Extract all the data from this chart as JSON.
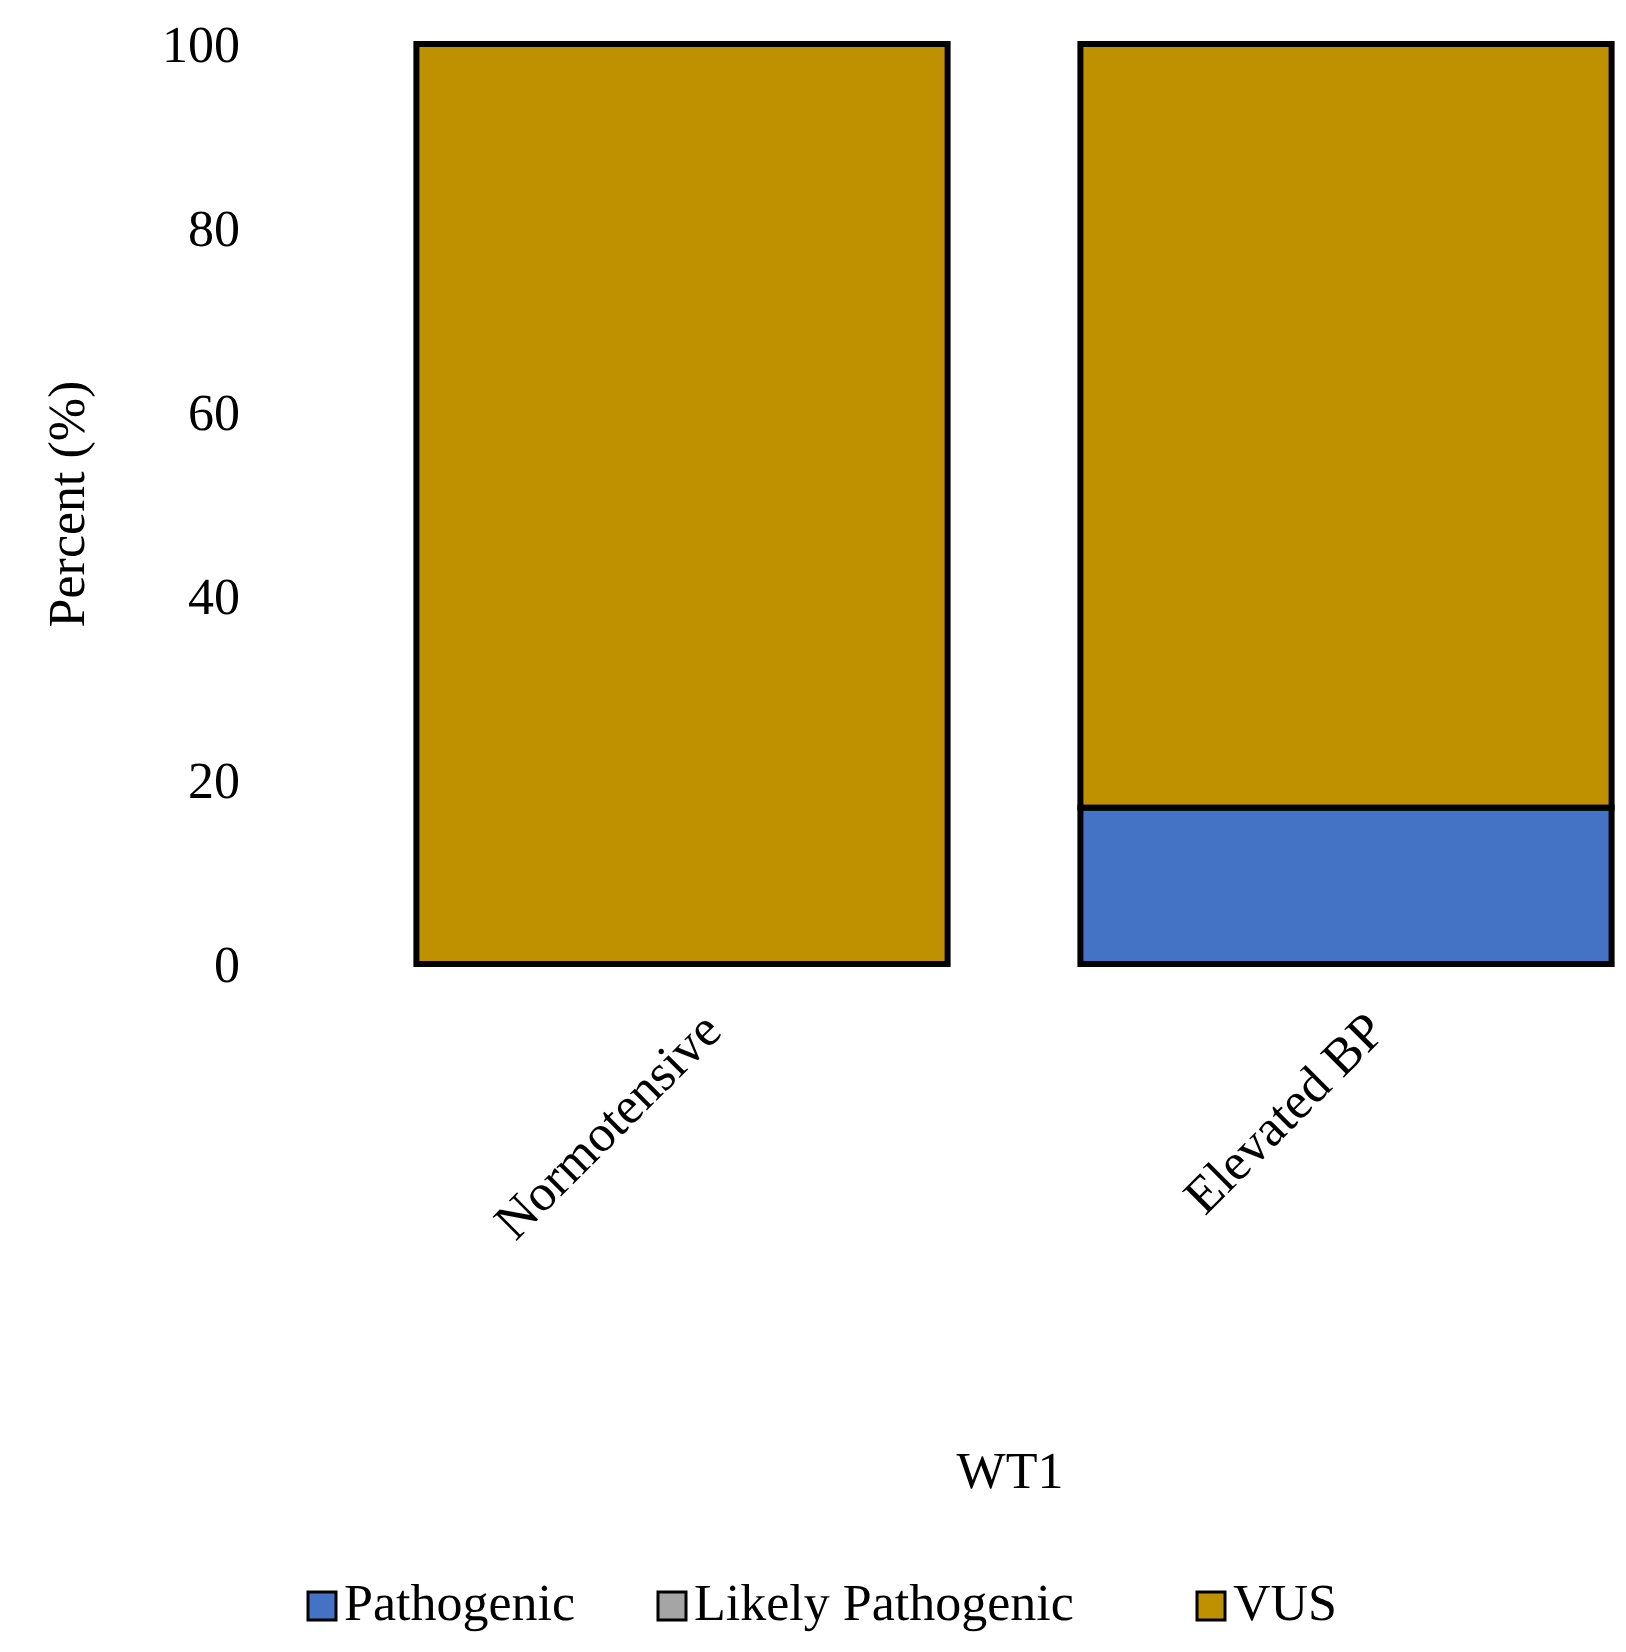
{
  "chart_data": {
    "type": "bar",
    "stacked": true,
    "xlabel": "WT1",
    "ylabel": "Percent (%)",
    "categories": [
      "Normotensive",
      "Elevated BP"
    ],
    "series": [
      {
        "name": "Pathogenic",
        "color": "#4472c4",
        "values": [
          0,
          17
        ]
      },
      {
        "name": "Likely Pathogenic",
        "color": "#a5a5a5",
        "values": [
          0,
          0
        ]
      },
      {
        "name": "VUS",
        "color": "#bf9000",
        "values": [
          100,
          83
        ]
      }
    ],
    "ylim": [
      0,
      100
    ],
    "yticks": [
      0,
      20,
      40,
      60,
      80,
      100
    ],
    "grid": false,
    "legend": "bottom"
  }
}
